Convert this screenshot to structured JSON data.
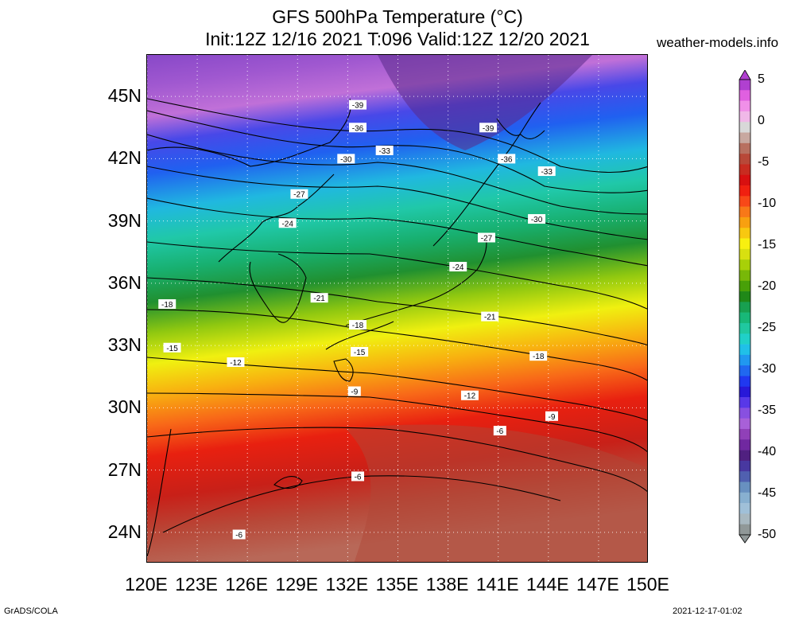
{
  "title": {
    "line1": "GFS 500hPa Temperature (°C)",
    "line2": "Init:12Z 12/16 2021 T:096 Valid:12Z 12/20 2021"
  },
  "site_label": "weather-models.info",
  "map": {
    "lon_range": [
      120,
      150
    ],
    "lat_range": [
      22.5,
      47
    ],
    "lat_ticks": [
      {
        "value": 45,
        "label": "45N"
      },
      {
        "value": 42,
        "label": "42N"
      },
      {
        "value": 39,
        "label": "39N"
      },
      {
        "value": 36,
        "label": "36N"
      },
      {
        "value": 33,
        "label": "33N"
      },
      {
        "value": 30,
        "label": "30N"
      },
      {
        "value": 27,
        "label": "27N"
      },
      {
        "value": 24,
        "label": "24N"
      }
    ],
    "lon_ticks": [
      {
        "value": 120,
        "label": "120E"
      },
      {
        "value": 123,
        "label": "123E"
      },
      {
        "value": 126,
        "label": "126E"
      },
      {
        "value": 129,
        "label": "129E"
      },
      {
        "value": 132,
        "label": "132E"
      },
      {
        "value": 135,
        "label": "135E"
      },
      {
        "value": 138,
        "label": "138E"
      },
      {
        "value": 141,
        "label": "141E"
      },
      {
        "value": 144,
        "label": "144E"
      },
      {
        "value": 147,
        "label": "147E"
      },
      {
        "value": 150,
        "label": "150E"
      }
    ],
    "grid": "dotted",
    "contour_labels": [
      {
        "text": "-39",
        "lon": 132.6,
        "lat": 44.6
      },
      {
        "text": "-36",
        "lon": 132.6,
        "lat": 43.5
      },
      {
        "text": "-33",
        "lon": 134.2,
        "lat": 42.4
      },
      {
        "text": "-30",
        "lon": 131.9,
        "lat": 42.0
      },
      {
        "text": "-27",
        "lon": 129.1,
        "lat": 40.3
      },
      {
        "text": "-24",
        "lon": 128.4,
        "lat": 38.9
      },
      {
        "text": "-21",
        "lon": 130.3,
        "lat": 35.3
      },
      {
        "text": "-18",
        "lon": 121.2,
        "lat": 35.0
      },
      {
        "text": "-15",
        "lon": 121.5,
        "lat": 32.9
      },
      {
        "text": "-12",
        "lon": 125.3,
        "lat": 32.2
      },
      {
        "text": "-9",
        "lon": 132.4,
        "lat": 30.8
      },
      {
        "text": "-6",
        "lon": 132.6,
        "lat": 26.7
      },
      {
        "text": "-6",
        "lon": 125.5,
        "lat": 23.9
      },
      {
        "text": "-39",
        "lon": 140.4,
        "lat": 43.5
      },
      {
        "text": "-36",
        "lon": 141.5,
        "lat": 42.0
      },
      {
        "text": "-33",
        "lon": 143.9,
        "lat": 41.4
      },
      {
        "text": "-30",
        "lon": 143.3,
        "lat": 39.1
      },
      {
        "text": "-27",
        "lon": 140.3,
        "lat": 38.2
      },
      {
        "text": "-24",
        "lon": 138.6,
        "lat": 36.8
      },
      {
        "text": "-21",
        "lon": 140.5,
        "lat": 34.4
      },
      {
        "text": "-18",
        "lon": 132.6,
        "lat": 34.0
      },
      {
        "text": "-15",
        "lon": 132.7,
        "lat": 32.7
      },
      {
        "text": "-18",
        "lon": 143.4,
        "lat": 32.5
      },
      {
        "text": "-12",
        "lon": 139.3,
        "lat": 30.6
      },
      {
        "text": "-9",
        "lon": 144.2,
        "lat": 29.6
      },
      {
        "text": "-6",
        "lon": 141.1,
        "lat": 28.9
      }
    ]
  },
  "colorbar": {
    "labels": [
      "5",
      "0",
      "-5",
      "-10",
      "-15",
      "-20",
      "-25",
      "-30",
      "-35",
      "-40",
      "-45",
      "-50"
    ],
    "colors": [
      "#b040d0",
      "#e060e0",
      "#f090e8",
      "#f0b8e8",
      "#d8d8d8",
      "#c8a8a0",
      "#b87060",
      "#b84838",
      "#c82c20",
      "#d81010",
      "#f02010",
      "#f84818",
      "#f87818",
      "#f8a010",
      "#f8c810",
      "#f8f010",
      "#d8e010",
      "#a8d008",
      "#78b808",
      "#48a008",
      "#208818",
      "#18a050",
      "#18b878",
      "#20c8a0",
      "#20d0c8",
      "#20c0e8",
      "#2098f0",
      "#2068f0",
      "#2038f0",
      "#2818d8",
      "#5838e8",
      "#8850e0",
      "#a860d8",
      "#9040b8",
      "#7028a0",
      "#502080",
      "#4838a0",
      "#5060b0",
      "#6890c0",
      "#88b0d0",
      "#a0c0d8",
      "#a8b8c0",
      "#909898"
    ]
  },
  "footer": {
    "left": "GrADS/COLA",
    "right": "2021-12-17-01:02"
  }
}
